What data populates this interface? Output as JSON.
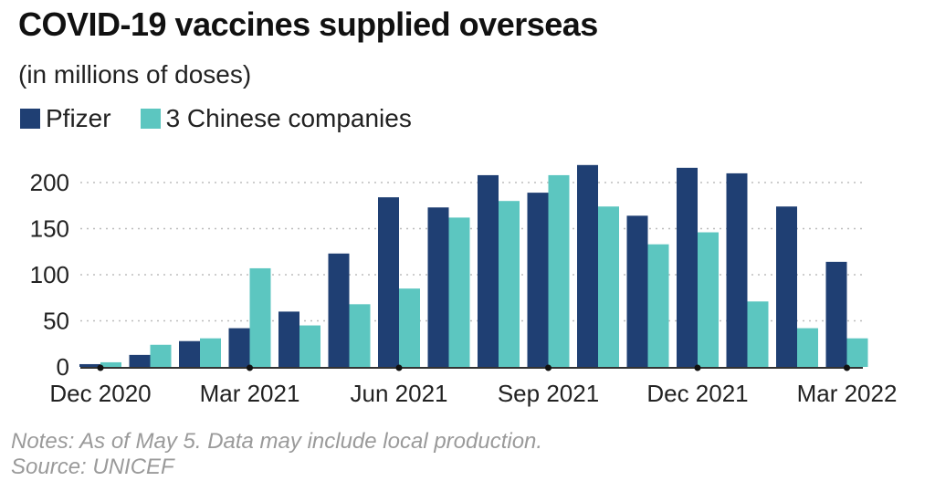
{
  "header": {
    "title": "COVID-19 vaccines supplied overseas",
    "subtitle": "(in millions of doses)"
  },
  "legend": {
    "series": [
      {
        "name": "Pfizer",
        "color": "#1f3f73"
      },
      {
        "name": "3 Chinese companies",
        "color": "#5cc6c0"
      }
    ]
  },
  "footer": {
    "notes": "Notes: As of May 5. Data may include local production.",
    "source": "Source: UNICEF"
  },
  "chart_data": {
    "type": "bar",
    "categories": [
      "Dec 2020",
      "Jan 2021",
      "Feb 2021",
      "Mar 2021",
      "Apr 2021",
      "May 2021",
      "Jun 2021",
      "Jul 2021",
      "Aug 2021",
      "Sep 2021",
      "Oct 2021",
      "Nov 2021",
      "Dec 2021",
      "Jan 2022",
      "Feb 2022",
      "Mar 2022"
    ],
    "x_tick_labels": [
      "Dec 2020",
      "Mar 2021",
      "Jun 2021",
      "Sep 2021",
      "Dec 2021",
      "Mar 2022"
    ],
    "x_tick_indices": [
      0,
      3,
      6,
      9,
      12,
      15
    ],
    "series": [
      {
        "name": "Pfizer",
        "color": "#1f3f73",
        "values": [
          3,
          13,
          28,
          42,
          60,
          123,
          184,
          173,
          208,
          189,
          219,
          164,
          216,
          210,
          174,
          114
        ]
      },
      {
        "name": "3 Chinese companies",
        "color": "#5cc6c0",
        "values": [
          5,
          24,
          31,
          107,
          45,
          68,
          85,
          162,
          180,
          208,
          174,
          133,
          146,
          71,
          42,
          31
        ]
      }
    ],
    "yticks": [
      0,
      50,
      100,
      150,
      200
    ],
    "ylim": [
      0,
      225
    ],
    "grid": "horizontal dotted",
    "legend_position": "top-left"
  }
}
